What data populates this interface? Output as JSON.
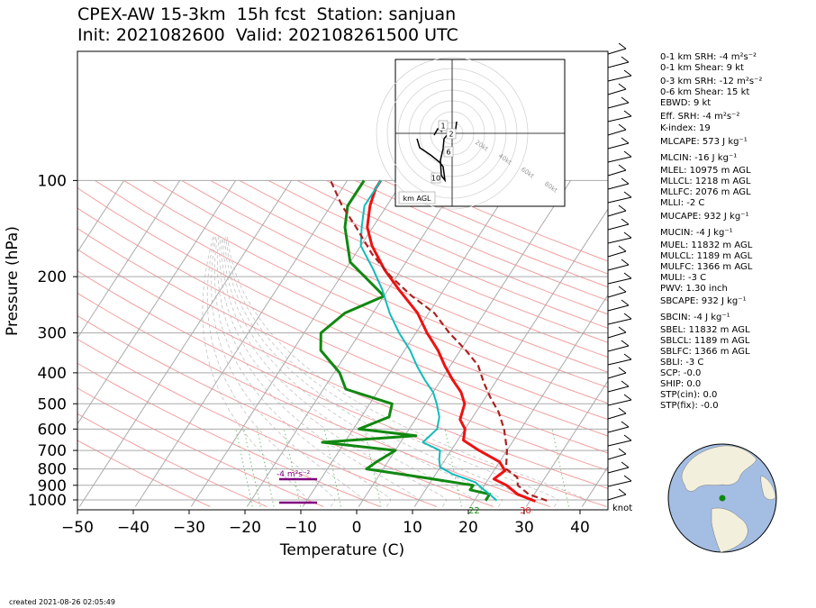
{
  "titles": {
    "line1": "CPEX-AW 15-3km  15h fcst  Station: sanjuan",
    "line2": "Init: 2021082600  Valid: 202108261500 UTC"
  },
  "colors": {
    "temperature": "#ee1111",
    "dewpoint": "#118811",
    "wetbulb": "#11bbbb",
    "parcel": "#aa2222",
    "srh": "#800080",
    "ocean": "#a4bde3",
    "land": "#f2efdc"
  },
  "chart_data": {
    "type": "skewt",
    "xlabel": "Temperature (C)",
    "ylabel": "Pressure (hPa)",
    "x_ticks": [
      -50,
      -40,
      -30,
      -20,
      -10,
      0,
      10,
      20,
      30,
      40
    ],
    "y_ticks": [
      100,
      200,
      300,
      400,
      500,
      600,
      700,
      800,
      900,
      1000
    ],
    "xlim": [
      -50,
      45
    ],
    "ylim_hpa": [
      1050,
      100
    ],
    "series": [
      {
        "key": "temperature",
        "points": [
          [
            31,
            1010
          ],
          [
            27,
            960
          ],
          [
            24,
            900
          ],
          [
            21,
            860
          ],
          [
            22,
            810
          ],
          [
            20,
            760
          ],
          [
            15,
            700
          ],
          [
            11,
            650
          ],
          [
            10,
            600
          ],
          [
            8,
            560
          ],
          [
            7,
            500
          ],
          [
            5,
            460
          ],
          [
            2,
            420
          ],
          [
            -1,
            380
          ],
          [
            -4,
            340
          ],
          [
            -8,
            300
          ],
          [
            -12,
            260
          ],
          [
            -18,
            220
          ],
          [
            -23,
            190
          ],
          [
            -28,
            160
          ],
          [
            -31,
            140
          ],
          [
            -33,
            120
          ],
          [
            -34,
            106
          ],
          [
            -34,
            100
          ]
        ]
      },
      {
        "key": "dewpoint",
        "points": [
          [
            22,
            1005
          ],
          [
            22,
            960
          ],
          [
            18,
            930
          ],
          [
            18,
            900
          ],
          [
            8,
            850
          ],
          [
            -3,
            800
          ],
          [
            -2,
            760
          ],
          [
            0,
            700
          ],
          [
            -14,
            660
          ],
          [
            2,
            630
          ],
          [
            -9,
            600
          ],
          [
            -5,
            550
          ],
          [
            -6,
            500
          ],
          [
            -16,
            450
          ],
          [
            -19,
            400
          ],
          [
            -25,
            340
          ],
          [
            -27,
            300
          ],
          [
            -25,
            260
          ],
          [
            -20,
            230
          ],
          [
            -30,
            180
          ],
          [
            -35,
            140
          ],
          [
            -37,
            120
          ],
          [
            -37,
            100
          ]
        ]
      },
      {
        "key": "wetbulb",
        "points": [
          [
            24,
            1005
          ],
          [
            22,
            960
          ],
          [
            20,
            920
          ],
          [
            18,
            880
          ],
          [
            13,
            830
          ],
          [
            10,
            790
          ],
          [
            9,
            750
          ],
          [
            8,
            700
          ],
          [
            4,
            660
          ],
          [
            5,
            600
          ],
          [
            4,
            550
          ],
          [
            2,
            500
          ],
          [
            0,
            460
          ],
          [
            -3,
            420
          ],
          [
            -6,
            380
          ],
          [
            -9,
            340
          ],
          [
            -13,
            300
          ],
          [
            -17,
            260
          ],
          [
            -21,
            220
          ],
          [
            -25,
            190
          ],
          [
            -30,
            160
          ],
          [
            -32,
            140
          ],
          [
            -34,
            120
          ],
          [
            -34,
            105
          ],
          [
            -34,
            100
          ]
        ]
      },
      {
        "key": "parcel",
        "points": [
          [
            33,
            1005
          ],
          [
            29,
            960
          ],
          [
            26,
            900
          ],
          [
            25,
            850
          ],
          [
            22,
            800
          ],
          [
            20,
            700
          ],
          [
            17,
            600
          ],
          [
            14,
            530
          ],
          [
            11,
            480
          ],
          [
            8,
            430
          ],
          [
            5,
            380
          ],
          [
            1,
            340
          ],
          [
            -4,
            300
          ],
          [
            -9,
            260
          ],
          [
            -15,
            230
          ],
          [
            -21,
            200
          ],
          [
            -27,
            170
          ],
          [
            -33,
            140
          ],
          [
            -38,
            120
          ],
          [
            -43,
            100
          ]
        ]
      }
    ],
    "annotations": {
      "surface_temp": "30",
      "surface_dewpoint": "22",
      "srh_label": "-4 m²s⁻²"
    },
    "wind_unit": "knot"
  },
  "hodograph": {
    "rings": [
      "20kt",
      "40kt",
      "60kt",
      "80kt"
    ],
    "labels": [
      "1",
      "2",
      "6",
      "10"
    ],
    "legend": "km AGL"
  },
  "indices": [
    "0-1 km SRH: -4 m²s⁻²",
    "0-1 km Shear: 9 kt",
    "0-3 km SRH: -12 m²s⁻²",
    "0-6 km Shear: 15 kt",
    "EBWD: 9 kt",
    "Eff. SRH: -4 m²s⁻²",
    "K-index: 19",
    "MLCAPE: 573 J kg⁻¹",
    "MLCIN: -16 J kg⁻¹",
    "MLEL: 10975 m AGL",
    "MLLCL: 1218 m AGL",
    "MLLFC: 2076 m AGL",
    "MLLI: -2 C",
    "MUCAPE: 932 J kg⁻¹",
    "MUCIN: -4 J kg⁻¹",
    "MUEL: 11832 m AGL",
    "MULCL: 1189 m AGL",
    "MULFC: 1366 m AGL",
    "MULI: -3 C",
    "PWV: 1.30 inch",
    "SBCAPE: 932 J kg⁻¹",
    "SBCIN: -4 J kg⁻¹",
    "SBEL: 11832 m AGL",
    "SBLCL: 1189 m AGL",
    "SBLFC: 1366 m AGL",
    "SBLI: -3 C",
    "SCP: -0.0",
    "SHIP: 0.0",
    "STP(cin): 0.0",
    "STP(fix): -0.0"
  ],
  "footer": "created 2021-08-26 02:05:49"
}
